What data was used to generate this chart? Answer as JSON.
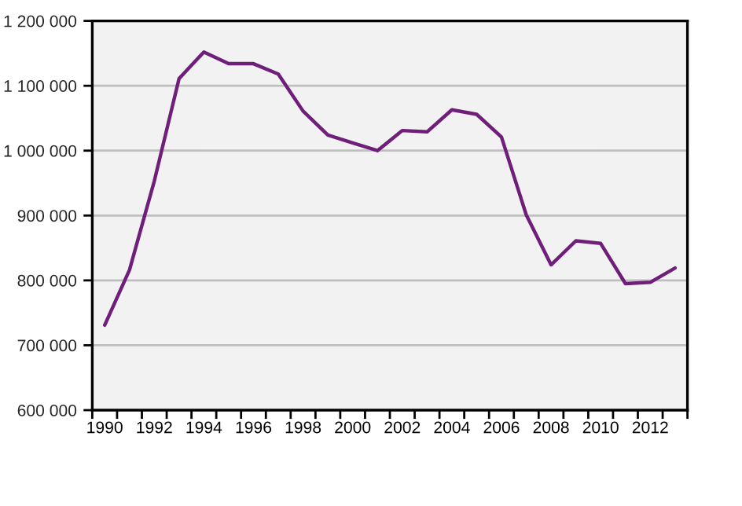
{
  "chart_data": {
    "type": "line",
    "categories": [
      "1990",
      null,
      "1992",
      null,
      "1994",
      null,
      "1996",
      null,
      "1998",
      null,
      "2000",
      null,
      "2002",
      null,
      "2004",
      null,
      "2006",
      null,
      "2008",
      null,
      "2010",
      null,
      "2012",
      null
    ],
    "series": [
      {
        "color": "#6f1f7a",
        "values": [
          731000,
          816000,
          953000,
          1111000,
          1152000,
          1134000,
          1134000,
          1118000,
          1061000,
          1024000,
          1012000,
          1000000,
          1031000,
          1029000,
          1063000,
          1056000,
          1021000,
          901000,
          824000,
          861000,
          857000,
          795000,
          797000,
          819000
        ]
      }
    ],
    "ylim": [
      600000,
      1200000
    ],
    "yticks": [
      {
        "value": 600000,
        "label": "600 000"
      },
      {
        "value": 700000,
        "label": "700 000"
      },
      {
        "value": 800000,
        "label": "800 000"
      },
      {
        "value": 900000,
        "label": "900 000"
      },
      {
        "value": 1000000,
        "label": "1 000 000"
      },
      {
        "value": 1100000,
        "label": "1 100 000"
      },
      {
        "value": 1200000,
        "label": "1 200 000"
      }
    ],
    "grid": "y",
    "line_style": "solid"
  }
}
